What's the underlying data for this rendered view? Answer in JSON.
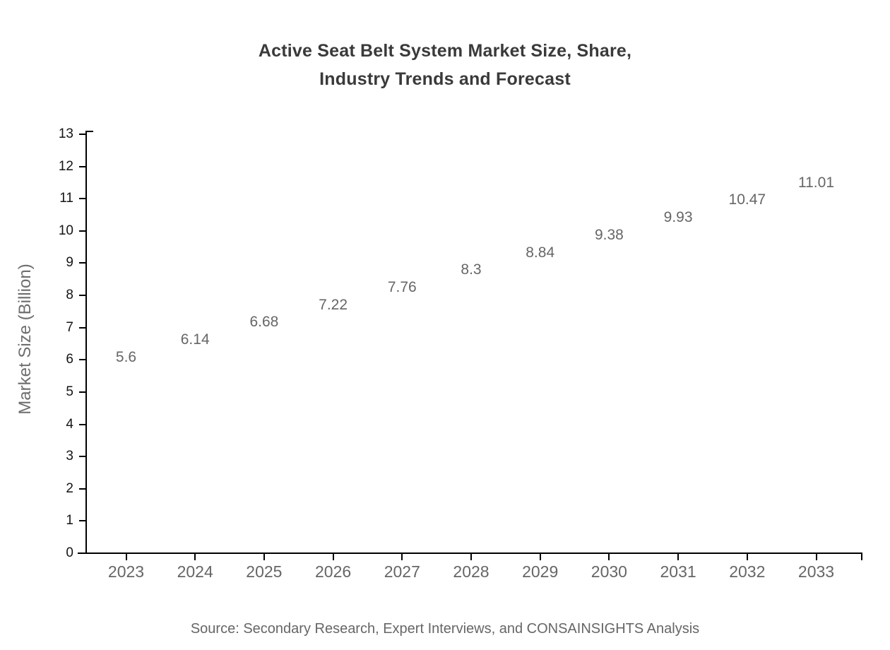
{
  "title": {
    "line1": "Active Seat Belt System Market Size, Share,",
    "line2": "Industry Trends and Forecast"
  },
  "source_note": "Source: Secondary Research, Expert Interviews, and CONSAINSIGHTS Analysis",
  "chart_data": {
    "type": "bar",
    "title": "Active Seat Belt System Market Size, Share, Industry Trends and Forecast",
    "xlabel": "",
    "ylabel": "Market Size (Billion)",
    "categories": [
      "2023",
      "2024",
      "2025",
      "2026",
      "2027",
      "2028",
      "2029",
      "2030",
      "2031",
      "2032",
      "2033"
    ],
    "values": [
      5.6,
      6.14,
      6.68,
      7.22,
      7.76,
      8.3,
      8.84,
      9.38,
      9.93,
      10.47,
      11.01
    ],
    "value_labels": [
      "5.6",
      "6.14",
      "6.68",
      "7.22",
      "7.76",
      "8.3",
      "8.84",
      "9.38",
      "9.93",
      "10.47",
      "11.01"
    ],
    "ylim": [
      0,
      13
    ],
    "yticks": [
      0,
      1,
      2,
      3,
      4,
      5,
      6,
      7,
      8,
      9,
      10,
      11,
      12,
      13
    ],
    "grid": false,
    "legend": "none",
    "colors": {
      "bar_gradient_top": "#2193F7",
      "bar_gradient_bottom": "#4565DF",
      "axis": "#000000",
      "title_text": "#3a3a3a",
      "ytick_text": "#141414",
      "xtick_text": "#666666",
      "value_text": "#666666",
      "axis_label_text": "#6e6e6e",
      "source_text": "#666666",
      "background": "#ffffff"
    }
  }
}
